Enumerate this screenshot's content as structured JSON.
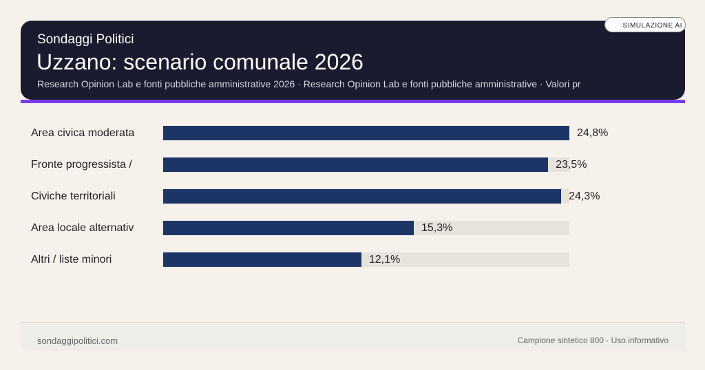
{
  "header": {
    "brand": "Sondaggi Politici",
    "title": "Uzzano: scenario comunale 2026",
    "subtitle": "Research Opinion Lab e fonti pubbliche amministrative 2026 · Research Opinion Lab e fonti pubbliche amministrative · Valori pr",
    "badge": "SIMULAZIONE AI"
  },
  "colors": {
    "bar": "#1d3566",
    "track": "#e7e2dc",
    "accent": "#7c3aed",
    "header_bg": "#1b1b2f"
  },
  "chart_data": {
    "type": "bar",
    "orientation": "horizontal",
    "categories": [
      "Area civica moderata",
      "Fronte progressista /",
      "Civiche territoriali",
      "Area locale alternativ",
      "Altri / liste minori"
    ],
    "values": [
      24.8,
      23.5,
      24.3,
      15.3,
      12.1
    ],
    "labels": [
      "24,8%",
      "23,5%",
      "24,3%",
      "15,3%",
      "12,1%"
    ],
    "xlim": [
      0,
      24.8
    ],
    "grid": false,
    "unit": "%"
  },
  "footer": {
    "left": "sondaggipolitici.com",
    "right": "Campione sintetico 800 · Uso informativo"
  }
}
